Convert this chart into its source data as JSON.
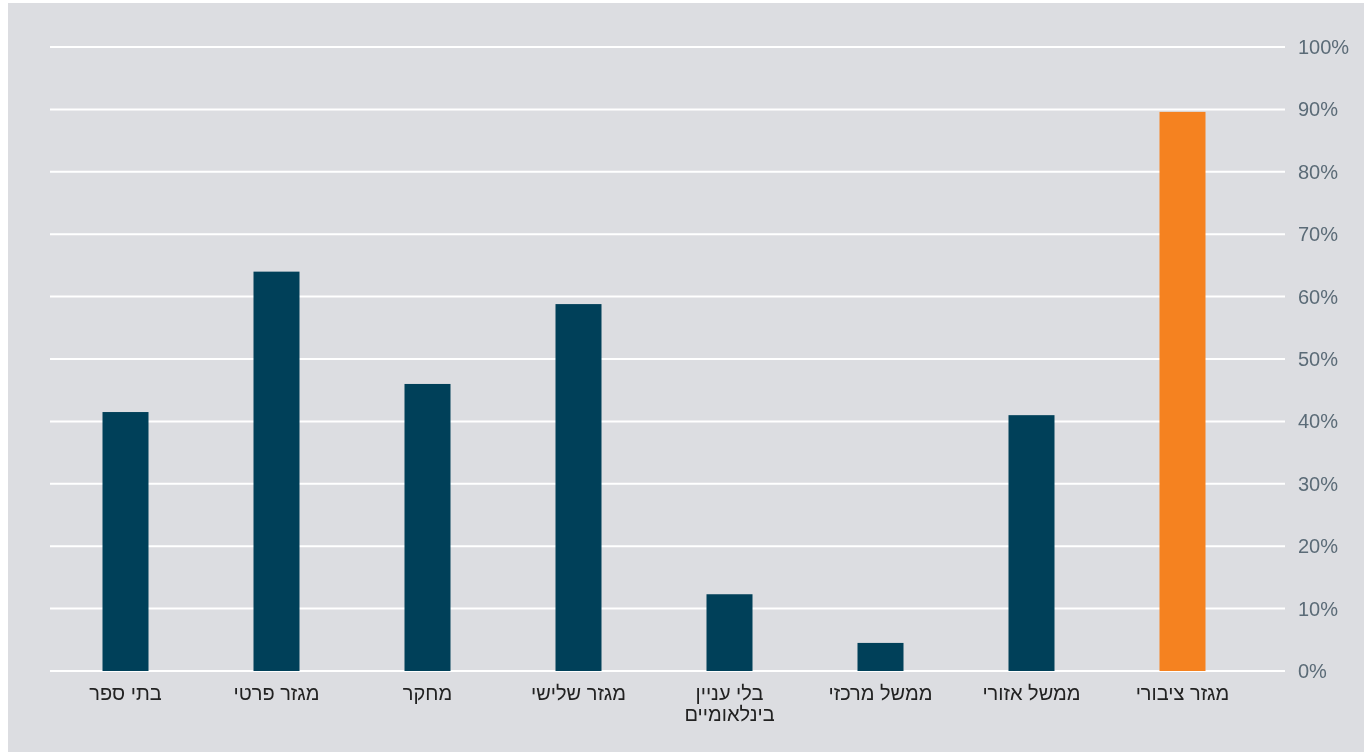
{
  "chart_data": {
    "type": "bar",
    "categories": [
      "בתי ספר",
      "מגזר פרטי",
      "מחקר",
      "מגזר שלישי",
      "בלי עניין\nבינלאומיים",
      "ממשל מרכזי",
      "ממשל אזורי",
      "מגזר ציבורי"
    ],
    "values": [
      41.5,
      64,
      46,
      58.8,
      12.3,
      4.5,
      41,
      89.6
    ],
    "colors": [
      "#004059",
      "#004059",
      "#004059",
      "#004059",
      "#004059",
      "#004059",
      "#004059",
      "#f58220"
    ],
    "ylim": [
      0,
      100
    ],
    "yticks": [
      {
        "value": 0,
        "label": "0%"
      },
      {
        "value": 10,
        "label": "10%"
      },
      {
        "value": 20,
        "label": "20%"
      },
      {
        "value": 30,
        "label": "30%"
      },
      {
        "value": 40,
        "label": "40%"
      },
      {
        "value": 50,
        "label": "50%"
      },
      {
        "value": 60,
        "label": "60%"
      },
      {
        "value": 70,
        "label": "70%"
      },
      {
        "value": 80,
        "label": "80%"
      },
      {
        "value": 90,
        "label": "90%"
      },
      {
        "value": 100,
        "label": "100%"
      }
    ],
    "grid": "y"
  }
}
